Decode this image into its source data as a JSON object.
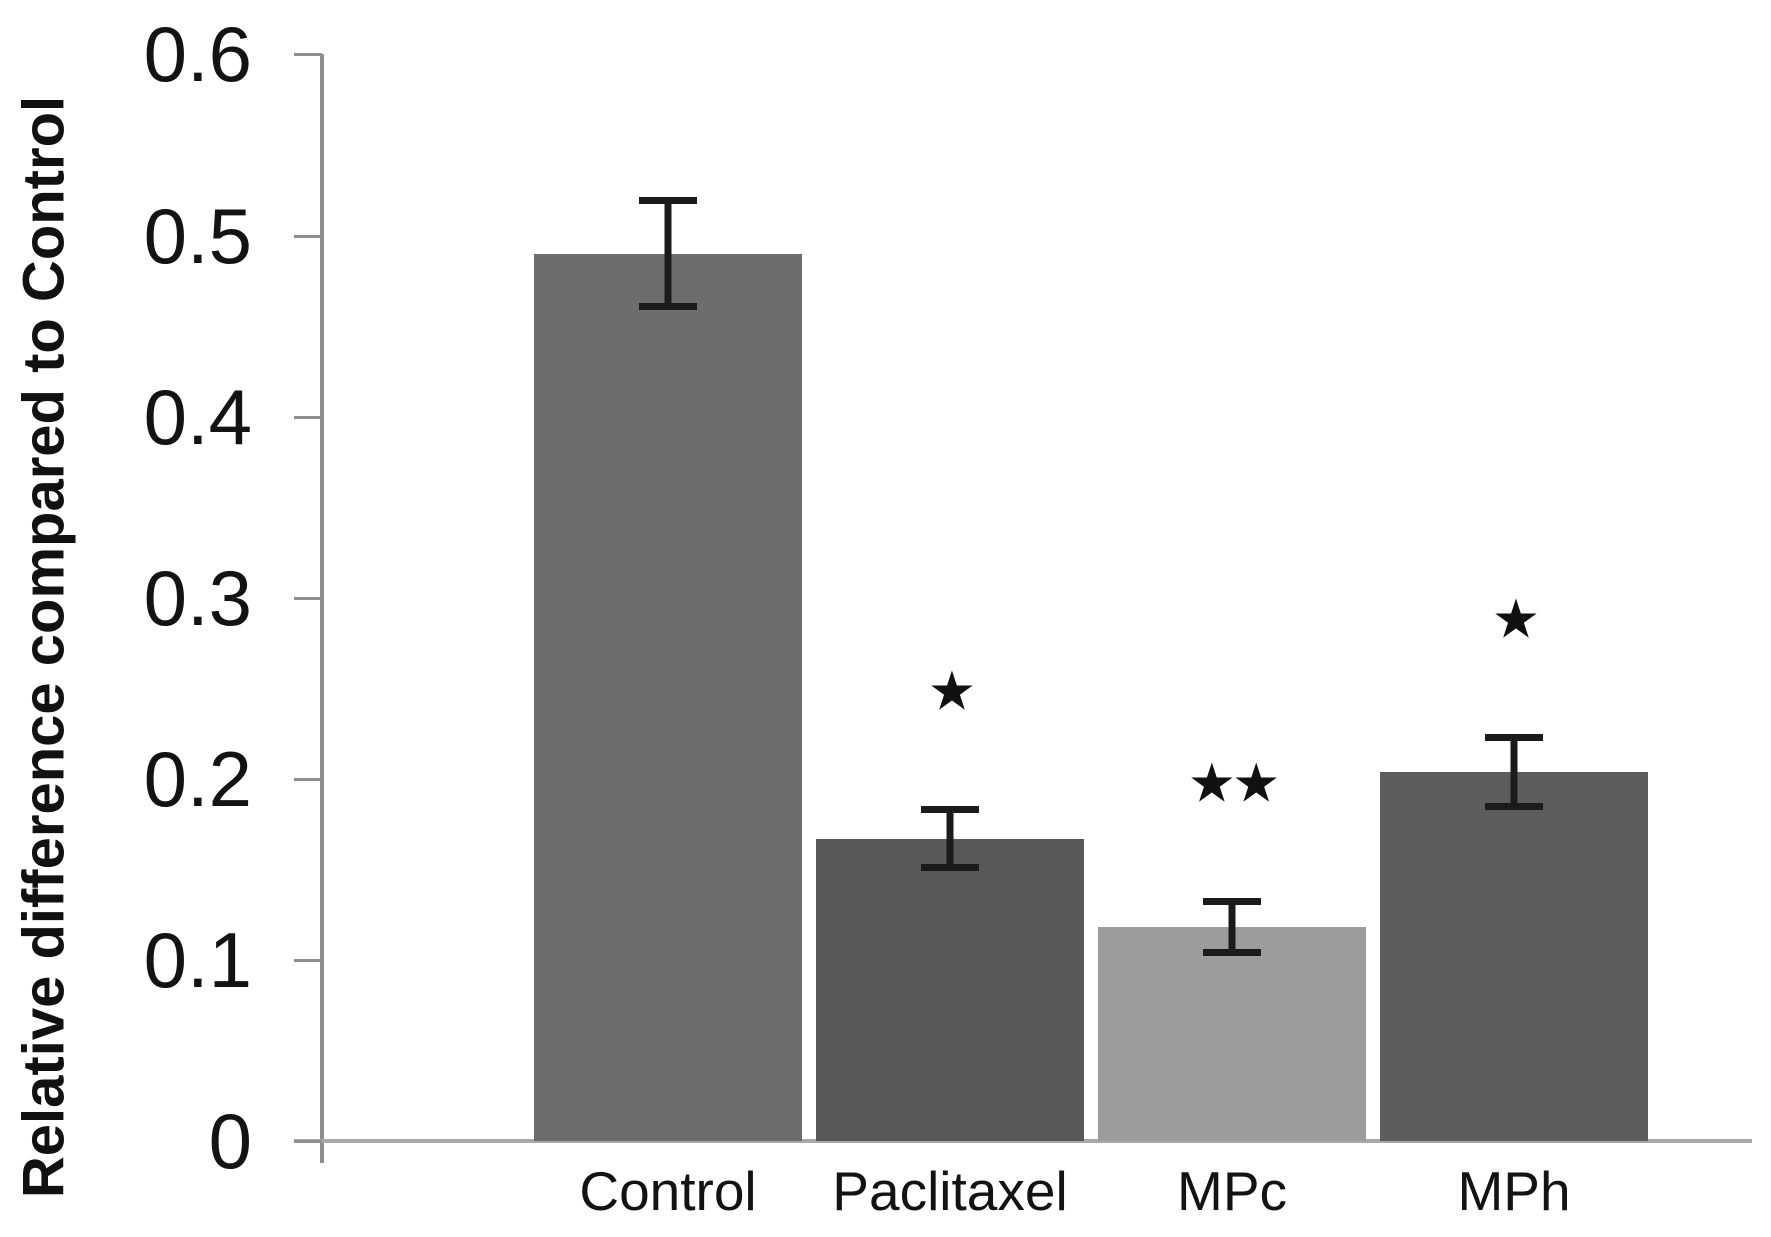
{
  "chart_data": {
    "type": "bar",
    "title": "",
    "ylabel": "Relative difference compared to Control",
    "xlabel": "",
    "categories": [
      "Control",
      "Paclitaxel",
      "MPc",
      "MPh"
    ],
    "values": [
      0.49,
      0.167,
      0.118,
      0.204
    ],
    "errors": [
      0.031,
      0.018,
      0.016,
      0.021
    ],
    "significance": [
      "",
      "*",
      "**",
      "*"
    ],
    "bar_colors": [
      "#6d6d6d",
      "#585858",
      "#9c9c9c",
      "#5d5d5d"
    ],
    "yticks": [
      0,
      0.1,
      0.2,
      0.3,
      0.4,
      0.5,
      0.6
    ],
    "ytick_labels": [
      "0",
      "0.1",
      "0.2",
      "0.3",
      "0.4",
      "0.5",
      "0.6"
    ],
    "ylim": [
      0,
      0.6
    ],
    "grid": false,
    "legend": null,
    "error_bar_color": "#1b1b1b",
    "axis_color": "#8f8f8f"
  }
}
